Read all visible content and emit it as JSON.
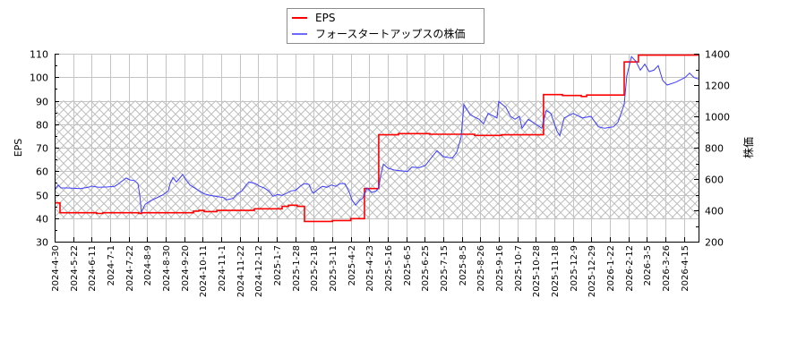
{
  "chart_data": {
    "type": "line",
    "title": "",
    "x_position_unit": "tick_index (0 = 2024-4-30, 34 = 2026-4-15; ticks every ~15 trading days)",
    "x_axis": {
      "label": "",
      "ticks": [
        "2024-4-30",
        "2024-5-22",
        "2024-6-11",
        "2024-7-1",
        "2024-7-22",
        "2024-8-9",
        "2024-8-30",
        "2024-9-20",
        "2024-10-11",
        "2024-11-1",
        "2024-11-22",
        "2024-12-12",
        "2025-1-7",
        "2025-1-28",
        "2025-2-18",
        "2025-3-11",
        "2025-4-2",
        "2025-4-23",
        "2025-5-16",
        "2025-6-5",
        "2025-6-25",
        "2025-7-15",
        "2025-8-5",
        "2025-8-26",
        "2025-9-16",
        "2025-10-7",
        "2025-10-28",
        "2025-11-18",
        "2025-12-9",
        "2025-12-29",
        "2026-1-22",
        "2026-2-12",
        "2026-3-5",
        "2026-3-26",
        "2026-4-15"
      ],
      "range": [
        0,
        34.78
      ]
    },
    "y_left": {
      "label": "EPS",
      "range": [
        30,
        110
      ],
      "ticks": [
        "30",
        "40",
        "50",
        "60",
        "70",
        "80",
        "90",
        "100",
        "110"
      ],
      "minor_step": 5
    },
    "y_right": {
      "label": "株価",
      "range": [
        200,
        1400
      ],
      "ticks": [
        "200",
        "400",
        "600",
        "800",
        "1000",
        "1200",
        "1400"
      ],
      "minor_step": 100
    },
    "shaded_band": {
      "axis": "left",
      "from": 40,
      "to": 90,
      "style": "crosshatch",
      "color": "#b4b4b4"
    },
    "grid": true,
    "grid_color": "#c4c4c4",
    "legend": {
      "position": "top-center",
      "entries": [
        {
          "name": "EPS",
          "color": "#ff0000"
        },
        {
          "name": "フォースタートアップスの株価",
          "color": "#3c3cff"
        }
      ]
    },
    "categories": [
      "2024-4-30",
      "2024-5-22",
      "2024-6-11",
      "2024-7-1",
      "2024-7-22",
      "2024-8-9",
      "2024-8-30",
      "2024-9-20",
      "2024-10-11",
      "2024-11-1",
      "2024-11-22",
      "2024-12-12",
      "2025-1-7",
      "2025-1-28",
      "2025-2-18",
      "2025-3-11",
      "2025-4-2",
      "2025-4-23",
      "2025-5-16",
      "2025-6-5",
      "2025-6-25",
      "2025-7-15",
      "2025-8-5",
      "2025-8-26",
      "2025-9-16",
      "2025-10-7",
      "2025-10-28",
      "2025-11-18",
      "2025-12-9",
      "2025-12-29",
      "2026-1-22",
      "2026-2-12",
      "2026-3-5",
      "2026-3-26",
      "2026-4-15"
    ],
    "series": [
      {
        "name": "EPS",
        "axis": "left",
        "color": "#ff0000",
        "step": true,
        "values_at_ticks": [
          46.5,
          42.3,
          42.3,
          42.3,
          42.3,
          42.3,
          42.3,
          42.3,
          43.3,
          43.3,
          43.3,
          44.0,
          44.0,
          45.5,
          38.6,
          39.0,
          39.8,
          52.6,
          75.5,
          76.0,
          76.0,
          75.7,
          75.7,
          75.2,
          75.2,
          75.5,
          75.5,
          92.6,
          92.2,
          92.4,
          92.4,
          106.5,
          109.4,
          109.4,
          109.4
        ],
        "points": [
          [
            0,
            46.5
          ],
          [
            0.29,
            42.3
          ],
          [
            2.27,
            42.0
          ],
          [
            2.61,
            42.3
          ],
          [
            4.55,
            42.0
          ],
          [
            4.69,
            42.3
          ],
          [
            7.5,
            43.0
          ],
          [
            7.79,
            43.3
          ],
          [
            8.08,
            42.8
          ],
          [
            8.76,
            43.3
          ],
          [
            10.79,
            44.0
          ],
          [
            12.29,
            45.0
          ],
          [
            12.63,
            45.5
          ],
          [
            13.11,
            45.0
          ],
          [
            13.5,
            38.6
          ],
          [
            15.0,
            39.0
          ],
          [
            16.0,
            39.8
          ],
          [
            16.74,
            52.6
          ],
          [
            17.51,
            75.5
          ],
          [
            18.58,
            76.0
          ],
          [
            20.27,
            75.7
          ],
          [
            22.69,
            75.2
          ],
          [
            24.14,
            75.5
          ],
          [
            26.41,
            92.6
          ],
          [
            27.43,
            92.2
          ],
          [
            28.45,
            91.8
          ],
          [
            28.74,
            92.4
          ],
          [
            30.77,
            106.5
          ],
          [
            31.54,
            109.4
          ],
          [
            34.78,
            109.2
          ]
        ]
      },
      {
        "name": "フォースタートアップスの株価",
        "axis": "right",
        "color": "#3c3cff",
        "step": false,
        "values_at_ticks": [
          530,
          541,
          555,
          550,
          597,
          435,
          515,
          604,
          510,
          484,
          515,
          550,
          503,
          528,
          509,
          560,
          467,
          528,
          670,
          649,
          685,
          743,
          1060,
          962,
          1093,
          988,
          953,
          960,
          1018,
          1000,
          944,
          1350,
          1290,
          1205,
          1243
        ],
        "points": [
          [
            0,
            530
          ],
          [
            0.19,
            562
          ],
          [
            0.34,
            543
          ],
          [
            0.68,
            543
          ],
          [
            1.4,
            539
          ],
          [
            1.89,
            549
          ],
          [
            1.98,
            555
          ],
          [
            2.37,
            547
          ],
          [
            2.85,
            549
          ],
          [
            3.24,
            553
          ],
          [
            3.48,
            571
          ],
          [
            3.58,
            581
          ],
          [
            3.87,
            606
          ],
          [
            4.06,
            594
          ],
          [
            4.31,
            590
          ],
          [
            4.5,
            571
          ],
          [
            4.6,
            495
          ],
          [
            4.69,
            390
          ],
          [
            4.89,
            438
          ],
          [
            5.18,
            461
          ],
          [
            5.52,
            480
          ],
          [
            5.85,
            499
          ],
          [
            6.14,
            524
          ],
          [
            6.24,
            571
          ],
          [
            6.39,
            610
          ],
          [
            6.58,
            581
          ],
          [
            6.72,
            600
          ],
          [
            6.92,
            629
          ],
          [
            7.06,
            600
          ],
          [
            7.31,
            562
          ],
          [
            7.69,
            533
          ],
          [
            8.08,
            505
          ],
          [
            8.42,
            495
          ],
          [
            8.66,
            490
          ],
          [
            9.14,
            481
          ],
          [
            9.29,
            467
          ],
          [
            9.63,
            476
          ],
          [
            9.87,
            505
          ],
          [
            10.11,
            524
          ],
          [
            10.35,
            562
          ],
          [
            10.5,
            581
          ],
          [
            10.84,
            571
          ],
          [
            11.08,
            553
          ],
          [
            11.32,
            543
          ],
          [
            11.56,
            524
          ],
          [
            11.8,
            490
          ],
          [
            12.05,
            501
          ],
          [
            12.29,
            495
          ],
          [
            12.53,
            509
          ],
          [
            12.77,
            524
          ],
          [
            13.01,
            528
          ],
          [
            13.26,
            553
          ],
          [
            13.5,
            571
          ],
          [
            13.74,
            565
          ],
          [
            13.88,
            524
          ],
          [
            13.98,
            509
          ],
          [
            14.22,
            533
          ],
          [
            14.47,
            553
          ],
          [
            14.71,
            547
          ],
          [
            14.95,
            562
          ],
          [
            15.19,
            553
          ],
          [
            15.43,
            571
          ],
          [
            15.68,
            571
          ],
          [
            15.92,
            514
          ],
          [
            16.06,
            467
          ],
          [
            16.26,
            433
          ],
          [
            16.5,
            467
          ],
          [
            16.64,
            476
          ],
          [
            16.88,
            543
          ],
          [
            17.13,
            514
          ],
          [
            17.37,
            524
          ],
          [
            17.51,
            543
          ],
          [
            17.61,
            619
          ],
          [
            17.76,
            695
          ],
          [
            18.0,
            670
          ],
          [
            18.34,
            657
          ],
          [
            18.73,
            652
          ],
          [
            19.06,
            648
          ],
          [
            19.3,
            676
          ],
          [
            19.69,
            672
          ],
          [
            20.03,
            686
          ],
          [
            20.27,
            724
          ],
          [
            20.66,
            781
          ],
          [
            21.0,
            743
          ],
          [
            21.48,
            733
          ],
          [
            21.72,
            771
          ],
          [
            21.96,
            867
          ],
          [
            22.11,
            1076
          ],
          [
            22.45,
            1010
          ],
          [
            22.93,
            981
          ],
          [
            23.17,
            952
          ],
          [
            23.42,
            1019
          ],
          [
            23.9,
            990
          ],
          [
            23.99,
            1095
          ],
          [
            24.38,
            1057
          ],
          [
            24.63,
            1000
          ],
          [
            24.87,
            981
          ],
          [
            25.11,
            1000
          ],
          [
            25.25,
            924
          ],
          [
            25.59,
            981
          ],
          [
            26.08,
            943
          ],
          [
            26.32,
            924
          ],
          [
            26.56,
            1038
          ],
          [
            26.8,
            1019
          ],
          [
            27.14,
            905
          ],
          [
            27.29,
            876
          ],
          [
            27.53,
            990
          ],
          [
            28.01,
            1019
          ],
          [
            28.5,
            990
          ],
          [
            28.98,
            1000
          ],
          [
            29.37,
            933
          ],
          [
            29.71,
            924
          ],
          [
            30.19,
            933
          ],
          [
            30.43,
            962
          ],
          [
            30.77,
            1076
          ],
          [
            30.91,
            1257
          ],
          [
            31.16,
            1381
          ],
          [
            31.4,
            1352
          ],
          [
            31.64,
            1295
          ],
          [
            31.88,
            1333
          ],
          [
            32.12,
            1286
          ],
          [
            32.37,
            1295
          ],
          [
            32.61,
            1324
          ],
          [
            32.85,
            1229
          ],
          [
            33.09,
            1200
          ],
          [
            33.57,
            1219
          ],
          [
            34.06,
            1248
          ],
          [
            34.3,
            1276
          ],
          [
            34.54,
            1248
          ],
          [
            34.78,
            1238
          ]
        ]
      }
    ]
  }
}
